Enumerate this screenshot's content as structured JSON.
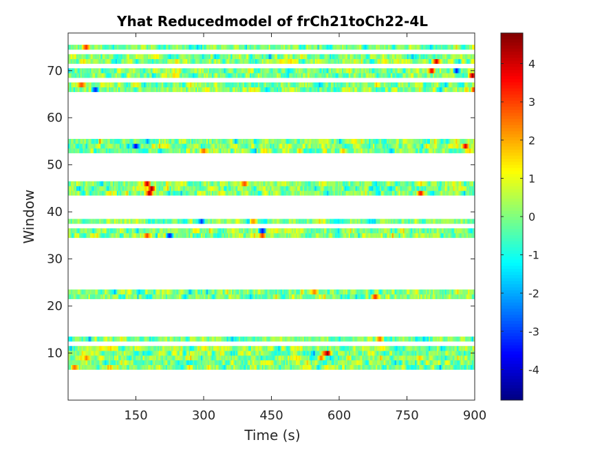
{
  "chart_data": {
    "type": "heatmap",
    "title": "Yhat Reducedmodel of frCh21toCh22-4L",
    "xlabel": "Time (s)",
    "ylabel": "Window",
    "xlim": [
      0,
      900
    ],
    "ylim": [
      0,
      78
    ],
    "x_ticks": [
      150,
      300,
      450,
      600,
      750,
      900
    ],
    "x_tick_labels": [
      "150",
      "300",
      "450",
      "600",
      "750",
      "900"
    ],
    "y_ticks": [
      10,
      20,
      30,
      40,
      50,
      60,
      70
    ],
    "y_tick_labels": [
      "10",
      "20",
      "30",
      "40",
      "50",
      "60",
      "70"
    ],
    "colormap": "jet",
    "clim": [
      -4.8,
      4.8
    ],
    "colorbar": {
      "ticks": [
        4,
        3,
        2,
        1,
        0,
        -1,
        -2,
        -3,
        -4
      ],
      "tick_labels": [
        "4",
        "3",
        "2",
        "1",
        "0",
        "-1",
        "-2",
        "-3",
        "-4"
      ]
    },
    "populated_windows": [
      7,
      8,
      9,
      10,
      11,
      13,
      22,
      23,
      35,
      36,
      38,
      44,
      45,
      46,
      53,
      54,
      55,
      66,
      67,
      69,
      70,
      72,
      73,
      75
    ],
    "hotspots": [
      {
        "window": 7,
        "time": 15,
        "value": 3
      },
      {
        "window": 10,
        "time": 570,
        "value": 4.2
      },
      {
        "window": 10,
        "time": 575,
        "value": 4
      },
      {
        "window": 9,
        "time": 560,
        "value": 2.5
      },
      {
        "window": 9,
        "time": 40,
        "value": 2.8
      },
      {
        "window": 13,
        "time": 690,
        "value": 2.6
      },
      {
        "window": 22,
        "time": 680,
        "value": 3.5
      },
      {
        "window": 23,
        "time": 545,
        "value": 2.5
      },
      {
        "window": 35,
        "time": 175,
        "value": 3
      },
      {
        "window": 35,
        "time": 225,
        "value": -4
      },
      {
        "window": 35,
        "time": 430,
        "value": 3.5
      },
      {
        "window": 36,
        "time": 430,
        "value": -3.5
      },
      {
        "window": 38,
        "time": 410,
        "value": 2.8
      },
      {
        "window": 38,
        "time": 295,
        "value": -3
      },
      {
        "window": 44,
        "time": 180,
        "value": 4.5
      },
      {
        "window": 45,
        "time": 185,
        "value": 4.7
      },
      {
        "window": 46,
        "time": 175,
        "value": 4.2
      },
      {
        "window": 44,
        "time": 780,
        "value": 3.5
      },
      {
        "window": 46,
        "time": 390,
        "value": 3
      },
      {
        "window": 54,
        "time": 150,
        "value": -4
      },
      {
        "window": 53,
        "time": 300,
        "value": 3
      },
      {
        "window": 54,
        "time": 880,
        "value": 4
      },
      {
        "window": 66,
        "time": 60,
        "value": -3.5
      },
      {
        "window": 67,
        "time": 30,
        "value": 3.5
      },
      {
        "window": 66,
        "time": 900,
        "value": 3.8
      },
      {
        "window": 69,
        "time": 895,
        "value": 4.8
      },
      {
        "window": 70,
        "time": 805,
        "value": 4
      },
      {
        "window": 72,
        "time": 815,
        "value": 4
      },
      {
        "window": 70,
        "time": 860,
        "value": -3.5
      },
      {
        "window": 75,
        "time": 40,
        "value": 3.5
      }
    ]
  }
}
